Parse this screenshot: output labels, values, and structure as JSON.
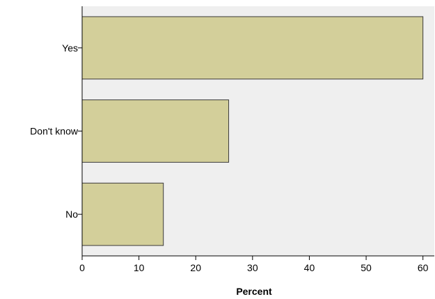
{
  "chart_data": {
    "type": "bar",
    "orientation": "horizontal",
    "categories": [
      "Yes",
      "Don't know",
      "No"
    ],
    "values": [
      60.0,
      25.8,
      14.3
    ],
    "xlabel": "Percent",
    "ylabel": "",
    "xlim": [
      0,
      62
    ],
    "xticks": [
      "0",
      "10",
      "20",
      "30",
      "40",
      "50",
      "60"
    ],
    "grid": false,
    "legend": "none",
    "colors": {
      "bar_fill": "#d3cf9a",
      "bar_stroke": "#3a3a3a",
      "plot_background": "#efefef",
      "axis": "#000000"
    }
  }
}
